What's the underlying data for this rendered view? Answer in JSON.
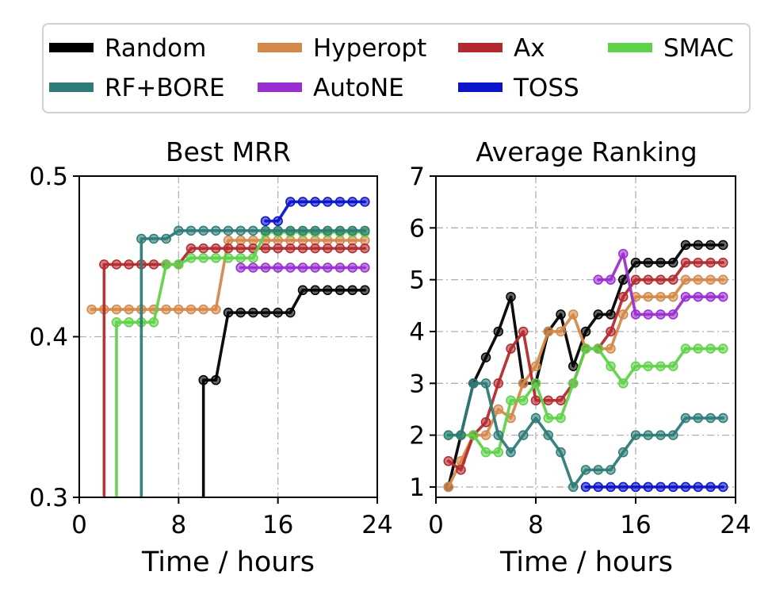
{
  "legend": [
    {
      "label": "Random",
      "color": "#000000"
    },
    {
      "label": "Hyperopt",
      "color": "#d4884a"
    },
    {
      "label": "Ax",
      "color": "#b22a2e"
    },
    {
      "label": "SMAC",
      "color": "#5fd24a"
    },
    {
      "label": "RF+BORE",
      "color": "#2e7b78"
    },
    {
      "label": "AutoNE",
      "color": "#9a2fd0"
    },
    {
      "label": "TOSS",
      "color": "#0a14c8"
    }
  ],
  "chart_data": [
    {
      "type": "line",
      "title": "Best MRR",
      "xlabel": "Time / hours",
      "ylabel": "",
      "xlim": [
        0,
        24
      ],
      "ylim": [
        0.3,
        0.5
      ],
      "xticks": [
        "0",
        "8",
        "16",
        "24"
      ],
      "yticks": [
        "0.3",
        "0.4",
        "0.5"
      ],
      "grid": true,
      "series": [
        {
          "name": "Random",
          "color": "#000000",
          "x": [
            10,
            11,
            12,
            13,
            14,
            15,
            16,
            17,
            18,
            19,
            20,
            21,
            22,
            23
          ],
          "y": [
            0.373,
            0.373,
            0.415,
            0.415,
            0.415,
            0.415,
            0.415,
            0.415,
            0.429,
            0.429,
            0.429,
            0.429,
            0.429,
            0.429
          ]
        },
        {
          "name": "Hyperopt",
          "color": "#d4884a",
          "x": [
            1,
            2,
            3,
            4,
            5,
            6,
            7,
            8,
            9,
            10,
            11,
            12,
            13,
            14,
            15,
            16,
            17,
            18,
            19,
            20,
            21,
            22,
            23
          ],
          "y": [
            0.417,
            0.417,
            0.417,
            0.417,
            0.417,
            0.417,
            0.417,
            0.417,
            0.417,
            0.417,
            0.417,
            0.46,
            0.46,
            0.46,
            0.46,
            0.46,
            0.46,
            0.46,
            0.46,
            0.46,
            0.46,
            0.46,
            0.46
          ]
        },
        {
          "name": "Ax",
          "color": "#b22a2e",
          "x": [
            2,
            3,
            4,
            5,
            6,
            7,
            8,
            9,
            10,
            11,
            12,
            13,
            14,
            15,
            16,
            17,
            18,
            19,
            20,
            21,
            22,
            23
          ],
          "y": [
            0.445,
            0.445,
            0.445,
            0.445,
            0.445,
            0.445,
            0.445,
            0.455,
            0.455,
            0.455,
            0.455,
            0.455,
            0.455,
            0.455,
            0.455,
            0.455,
            0.455,
            0.455,
            0.455,
            0.455,
            0.455,
            0.455
          ]
        },
        {
          "name": "SMAC",
          "color": "#5fd24a",
          "x": [
            3,
            4,
            5,
            6,
            7,
            8,
            9,
            10,
            11,
            12,
            13,
            14,
            15,
            16,
            17,
            18,
            19,
            20,
            21,
            22,
            23
          ],
          "y": [
            0.409,
            0.409,
            0.409,
            0.409,
            0.445,
            0.445,
            0.449,
            0.449,
            0.449,
            0.449,
            0.449,
            0.449,
            0.465,
            0.465,
            0.465,
            0.465,
            0.465,
            0.465,
            0.465,
            0.465,
            0.465
          ]
        },
        {
          "name": "RF+BORE",
          "color": "#2e7b78",
          "x": [
            5,
            6,
            7,
            8,
            9,
            10,
            11,
            12,
            13,
            14,
            15,
            16,
            17,
            18,
            19,
            20,
            21,
            22,
            23
          ],
          "y": [
            0.461,
            0.461,
            0.461,
            0.466,
            0.466,
            0.466,
            0.466,
            0.466,
            0.466,
            0.466,
            0.466,
            0.466,
            0.466,
            0.466,
            0.466,
            0.466,
            0.466,
            0.466,
            0.466
          ]
        },
        {
          "name": "AutoNE",
          "color": "#9a2fd0",
          "x": [
            13,
            14,
            15,
            16,
            17,
            18,
            19,
            20,
            21,
            22,
            23
          ],
          "y": [
            0.443,
            0.443,
            0.443,
            0.443,
            0.443,
            0.443,
            0.443,
            0.443,
            0.443,
            0.443,
            0.443
          ]
        },
        {
          "name": "TOSS",
          "color": "#0a14c8",
          "x": [
            15,
            16,
            17,
            18,
            19,
            20,
            21,
            22,
            23
          ],
          "y": [
            0.472,
            0.472,
            0.484,
            0.484,
            0.484,
            0.484,
            0.484,
            0.484,
            0.484
          ]
        }
      ],
      "drops": [
        {
          "name": "Random",
          "x": 10,
          "y": 0.373
        },
        {
          "name": "Ax",
          "x": 2,
          "y": 0.445
        },
        {
          "name": "SMAC",
          "x": 3,
          "y": 0.409
        },
        {
          "name": "RF+BORE",
          "x": 5,
          "y": 0.461
        }
      ]
    },
    {
      "type": "line",
      "title": "Average Ranking",
      "xlabel": "Time / hours",
      "ylabel": "",
      "xlim": [
        0,
        24
      ],
      "ylim": [
        0.8,
        7
      ],
      "xticks": [
        "0",
        "8",
        "16",
        "24"
      ],
      "yticks": [
        "1",
        "2",
        "3",
        "4",
        "5",
        "6",
        "7"
      ],
      "grid": true,
      "series": [
        {
          "name": "Random",
          "color": "#000000",
          "x": [
            1,
            2,
            3,
            4,
            5,
            6,
            7,
            8,
            9,
            10,
            11,
            12,
            13,
            14,
            15,
            16,
            17,
            18,
            19,
            20,
            21,
            22,
            23
          ],
          "y": [
            1.0,
            2.0,
            3.0,
            3.5,
            4.0,
            4.67,
            3.0,
            3.0,
            4.0,
            4.33,
            3.33,
            4.0,
            4.33,
            4.33,
            5.0,
            5.33,
            5.33,
            5.33,
            5.33,
            5.67,
            5.67,
            5.67,
            5.67
          ]
        },
        {
          "name": "Hyperopt",
          "color": "#d4884a",
          "x": [
            1,
            2,
            3,
            4,
            5,
            6,
            7,
            8,
            9,
            10,
            11,
            12,
            13,
            14,
            15,
            16,
            17,
            18,
            19,
            20,
            21,
            22,
            23
          ],
          "y": [
            1.0,
            1.5,
            2.0,
            2.0,
            2.5,
            2.33,
            3.0,
            3.33,
            4.0,
            4.0,
            4.33,
            3.67,
            3.67,
            3.67,
            4.33,
            4.67,
            4.67,
            4.67,
            4.67,
            5.0,
            5.0,
            5.0,
            5.0
          ]
        },
        {
          "name": "Ax",
          "color": "#b22a2e",
          "x": [
            1,
            2,
            3,
            4,
            5,
            6,
            7,
            8,
            9,
            10,
            11,
            12,
            13,
            14,
            15,
            16,
            17,
            18,
            19,
            20,
            21,
            22,
            23
          ],
          "y": [
            1.5,
            1.33,
            2.0,
            2.25,
            3.0,
            3.67,
            4.0,
            2.67,
            2.67,
            2.67,
            3.0,
            3.67,
            3.67,
            4.0,
            4.67,
            5.0,
            5.0,
            5.0,
            5.0,
            5.33,
            5.33,
            5.33,
            5.33
          ]
        },
        {
          "name": "SMAC",
          "color": "#5fd24a",
          "x": [
            1,
            2,
            3,
            4,
            5,
            6,
            7,
            8,
            9,
            10,
            11,
            12,
            13,
            14,
            15,
            16,
            17,
            18,
            19,
            20,
            21,
            22,
            23
          ],
          "y": [
            2.0,
            2.0,
            2.0,
            1.67,
            1.67,
            2.67,
            2.67,
            3.0,
            2.33,
            2.33,
            3.0,
            3.67,
            3.67,
            3.33,
            3.0,
            3.33,
            3.33,
            3.33,
            3.33,
            3.67,
            3.67,
            3.67,
            3.67
          ]
        },
        {
          "name": "RF+BORE",
          "color": "#2e7b78",
          "x": [
            1,
            2,
            3,
            4,
            5,
            6,
            7,
            8,
            9,
            10,
            11,
            12,
            13,
            14,
            15,
            16,
            17,
            18,
            19,
            20,
            21,
            22,
            23
          ],
          "y": [
            2.0,
            2.0,
            3.0,
            3.0,
            2.0,
            1.67,
            2.0,
            2.33,
            2.0,
            1.67,
            1.0,
            1.33,
            1.33,
            1.33,
            1.67,
            2.0,
            2.0,
            2.0,
            2.0,
            2.33,
            2.33,
            2.33,
            2.33
          ]
        },
        {
          "name": "AutoNE",
          "color": "#9a2fd0",
          "x": [
            13,
            14,
            15,
            16,
            17,
            18,
            19,
            20,
            21,
            22,
            23
          ],
          "y": [
            5.0,
            5.0,
            5.5,
            4.33,
            4.33,
            4.33,
            4.33,
            4.67,
            4.67,
            4.67,
            4.67
          ]
        },
        {
          "name": "TOSS",
          "color": "#0a14c8",
          "x": [
            12,
            13,
            14,
            15,
            16,
            17,
            18,
            19,
            20,
            21,
            22,
            23
          ],
          "y": [
            1.0,
            1.0,
            1.0,
            1.0,
            1.0,
            1.0,
            1.0,
            1.0,
            1.0,
            1.0,
            1.0,
            1.0
          ]
        }
      ]
    }
  ]
}
